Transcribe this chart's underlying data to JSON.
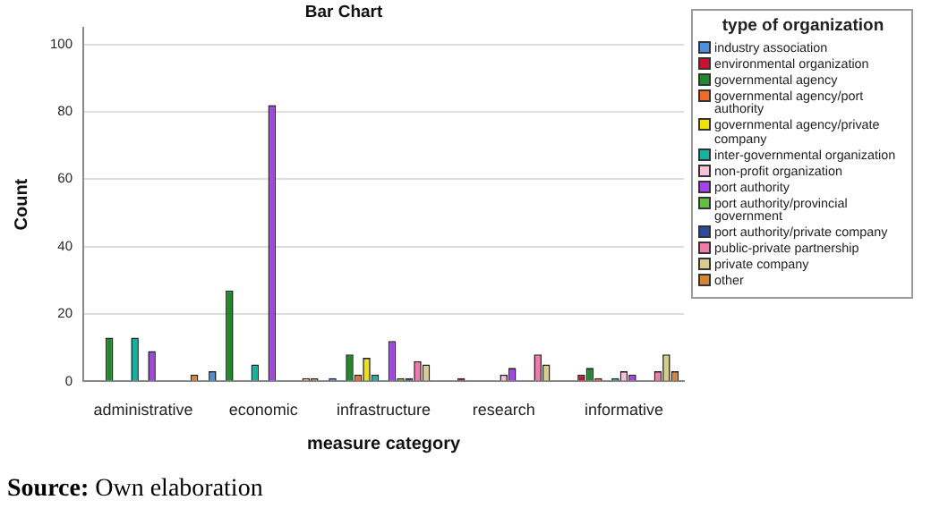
{
  "chart_data": {
    "type": "bar",
    "title": "Bar Chart",
    "xlabel": "measure category",
    "ylabel": "Count",
    "legend_title": "type of organization",
    "legend": "right",
    "categories": [
      "administrative",
      "economic",
      "infrastructure",
      "research",
      "informative"
    ],
    "ylim": [
      0,
      105
    ],
    "yticks": [
      0,
      20,
      40,
      60,
      80,
      100
    ],
    "grid": "y",
    "series": [
      {
        "name": "industry association",
        "color": "#4a8fe0",
        "values": [
          0,
          3,
          1,
          0,
          0
        ]
      },
      {
        "name": "environmental organization",
        "color": "#d0102a",
        "values": [
          0,
          0,
          0,
          1,
          2
        ]
      },
      {
        "name": "governmental agency",
        "color": "#1f8a2a",
        "values": [
          13,
          27,
          8,
          0,
          4
        ]
      },
      {
        "name": "governmental agency/port authority",
        "color": "#f26a22",
        "values": [
          0,
          0,
          2,
          0,
          1
        ]
      },
      {
        "name": "governmental agency/private company",
        "color": "#f2e200",
        "values": [
          0,
          0,
          7,
          0,
          0
        ]
      },
      {
        "name": "inter-governmental organization",
        "color": "#10b4a0",
        "values": [
          13,
          5,
          2,
          0,
          1
        ]
      },
      {
        "name": "non-profit organization",
        "color": "#fac0da",
        "values": [
          0,
          0,
          0,
          2,
          3
        ]
      },
      {
        "name": "port authority",
        "color": "#a640f0",
        "values": [
          9,
          82,
          12,
          4,
          2
        ]
      },
      {
        "name": "port authority/provincial government",
        "color": "#62c040",
        "values": [
          0,
          0,
          1,
          0,
          0
        ]
      },
      {
        "name": "port authority/private company",
        "color": "#2c4aa0",
        "values": [
          0,
          0,
          1,
          0,
          0
        ]
      },
      {
        "name": "public-private partnership",
        "color": "#f07aa8",
        "values": [
          0,
          0,
          6,
          8,
          3
        ]
      },
      {
        "name": "private company",
        "color": "#d8cc8c",
        "values": [
          0,
          1,
          5,
          5,
          8
        ]
      },
      {
        "name": "other",
        "color": "#d88430",
        "values": [
          2,
          1,
          0,
          0,
          3
        ]
      }
    ],
    "annotations": [
      "Source: Own elaboration"
    ]
  }
}
